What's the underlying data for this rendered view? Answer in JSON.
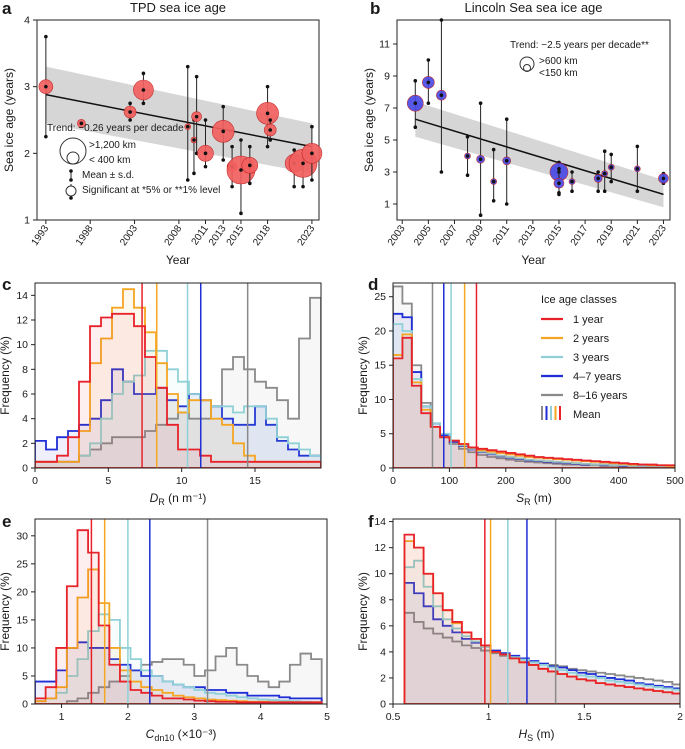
{
  "colors": {
    "c1": "#e8222a",
    "c2": "#f5a623",
    "c3": "#8fd1d6",
    "c4": "#1f2ed6",
    "c5": "#8a8a8a",
    "tpd_fill": "#f26060",
    "lincoln_fill": "#4a4ae6",
    "band": "#c8c8c8"
  },
  "chart_data": [
    {
      "id": "a",
      "letter": "a",
      "type": "scatter",
      "title": "TPD sea ice age",
      "xlabel": "Year",
      "ylabel": "Sea ice age (years)",
      "xlim": [
        1992,
        2023.8
      ],
      "ylim": [
        1,
        4
      ],
      "xticks": [
        1993,
        1998,
        2003,
        2008,
        2011,
        2013,
        2015,
        2018,
        2023
      ],
      "yticks": [
        1,
        2,
        3,
        4
      ],
      "trend": {
        "label": "Trend: −0.26 years per decade",
        "x": [
          1993,
          2023
        ],
        "y": [
          2.88,
          2.1
        ],
        "band_upper": [
          3.3,
          2.45
        ],
        "band_lower": [
          2.45,
          1.7
        ]
      },
      "legend_size_large": ">1,200 km",
      "legend_size_small": "< 400 km",
      "legend_mean": "Mean ± s.d.",
      "legend_sig": "Significant at *5% or **1% level",
      "points": [
        {
          "x": 1993,
          "y": 3.0,
          "lo": 2.25,
          "hi": 3.75,
          "s": 7
        },
        {
          "x": 1997,
          "y": 2.45,
          "lo": 2.45,
          "hi": 2.45,
          "s": 4
        },
        {
          "x": 2002.5,
          "y": 2.62,
          "lo": 2.5,
          "hi": 2.75,
          "s": 6
        },
        {
          "x": 2004,
          "y": 2.95,
          "lo": 2.75,
          "hi": 3.2,
          "s": 10
        },
        {
          "x": 2009,
          "y": 2.4,
          "lo": 1.6,
          "hi": 3.3,
          "s": 3
        },
        {
          "x": 2009.7,
          "y": 2.2,
          "lo": 1.7,
          "hi": 2.5,
          "s": 3
        },
        {
          "x": 2010,
          "y": 2.55,
          "lo": 2.0,
          "hi": 3.15,
          "s": 5
        },
        {
          "x": 2011,
          "y": 2.0,
          "lo": 1.8,
          "hi": 2.5,
          "s": 8
        },
        {
          "x": 2013,
          "y": 2.33,
          "lo": 1.9,
          "hi": 2.7,
          "s": 11
        },
        {
          "x": 2014,
          "y": 1.8,
          "lo": 1.5,
          "hi": 2.1,
          "s": 5
        },
        {
          "x": 2015,
          "y": 1.75,
          "lo": 1.1,
          "hi": 2.2,
          "s": 14
        },
        {
          "x": 2016,
          "y": 1.82,
          "lo": 1.55,
          "hi": 2.1,
          "s": 8
        },
        {
          "x": 2018,
          "y": 2.6,
          "lo": 2.1,
          "hi": 3.0,
          "s": 11
        },
        {
          "x": 2018.3,
          "y": 2.35,
          "lo": 2.2,
          "hi": 2.5,
          "s": 6
        },
        {
          "x": 2021,
          "y": 1.85,
          "lo": 1.5,
          "hi": 2.05,
          "s": 9
        },
        {
          "x": 2022,
          "y": 1.85,
          "lo": 1.5,
          "hi": 2.0,
          "s": 14
        },
        {
          "x": 2023,
          "y": 2.0,
          "lo": 1.6,
          "hi": 2.4,
          "s": 10
        }
      ]
    },
    {
      "id": "b",
      "letter": "b",
      "type": "scatter",
      "title": "Lincoln Sea sea ice age",
      "xlabel": "Year",
      "ylabel": "Sea ice age (years)",
      "xlim": [
        2002.6,
        2023.5
      ],
      "ylim": [
        0,
        12.5
      ],
      "xticks": [
        2003,
        2005,
        2007,
        2009,
        2011,
        2013,
        2015,
        2017,
        2019,
        2021,
        2023
      ],
      "yticks": [
        1,
        3,
        5,
        7,
        9,
        11
      ],
      "trend": {
        "label": "Trend: −2.5 years per decade**",
        "x": [
          2004,
          2023
        ],
        "y": [
          6.3,
          1.6
        ],
        "band_upper": [
          7.4,
          2.5
        ],
        "band_lower": [
          5.2,
          0.8
        ]
      },
      "legend_size_large": ">600 km",
      "legend_size_small": "<150 km",
      "points": [
        {
          "x": 2004,
          "y": 7.3,
          "lo": 5.8,
          "hi": 8.7,
          "s": 8
        },
        {
          "x": 2005,
          "y": 8.6,
          "lo": 7.3,
          "hi": 10.0,
          "s": 6
        },
        {
          "x": 2006,
          "y": 7.8,
          "lo": 3.0,
          "hi": 12.5,
          "s": 5
        },
        {
          "x": 2008,
          "y": 4.0,
          "lo": 2.8,
          "hi": 5.2,
          "s": 3
        },
        {
          "x": 2009,
          "y": 3.8,
          "lo": 0.3,
          "hi": 7.3,
          "s": 4
        },
        {
          "x": 2010,
          "y": 2.4,
          "lo": 1.2,
          "hi": 4.4,
          "s": 3
        },
        {
          "x": 2011,
          "y": 3.7,
          "lo": 1.0,
          "hi": 6.3,
          "s": 4
        },
        {
          "x": 2015,
          "y": 3.0,
          "lo": 1.6,
          "hi": 3.6,
          "s": 9
        },
        {
          "x": 2015,
          "y": 2.3,
          "lo": 1.7,
          "hi": 3.2,
          "s": 5
        },
        {
          "x": 2016,
          "y": 2.4,
          "lo": 1.8,
          "hi": 3.0,
          "s": 3
        },
        {
          "x": 2018,
          "y": 2.6,
          "lo": 1.8,
          "hi": 3.0,
          "s": 4
        },
        {
          "x": 2018.5,
          "y": 2.9,
          "lo": 1.8,
          "hi": 4.3,
          "s": 3
        },
        {
          "x": 2019,
          "y": 3.3,
          "lo": 2.4,
          "hi": 4.1,
          "s": 3
        },
        {
          "x": 2021,
          "y": 3.2,
          "lo": 1.8,
          "hi": 4.6,
          "s": 3
        },
        {
          "x": 2023,
          "y": 2.6,
          "lo": 2.3,
          "hi": 2.9,
          "s": 5
        }
      ]
    },
    {
      "id": "c",
      "letter": "c",
      "type": "histogram",
      "xlabel": "D_R (n m^-1)",
      "xlim": [
        0,
        19.5
      ],
      "ylim": [
        0,
        15
      ],
      "xticks": [
        0,
        5,
        10,
        15
      ],
      "yticks": [
        0,
        2,
        4,
        6,
        8,
        10,
        12,
        14
      ],
      "ylabel": "Frequency (%)",
      "edges_start": 0,
      "bin": 0.75,
      "series": [
        {
          "name": "1 year",
          "means": 7.3,
          "values": [
            0.5,
            0.5,
            1,
            2.5,
            7,
            11.5,
            12.2,
            12.5,
            12.5,
            11.5,
            9,
            6.5,
            3.5,
            1.5,
            1.5,
            1,
            0.5,
            0.5,
            0.5,
            0.5,
            0.5,
            0.5,
            0.5,
            0.5,
            0.5,
            0.5
          ]
        },
        {
          "name": "2 years",
          "means": 8.3,
          "values": [
            0.5,
            0.5,
            0.5,
            0.5,
            3,
            8.5,
            10.5,
            13,
            14.5,
            13,
            11,
            8.5,
            6,
            4.5,
            5.5,
            5.5,
            4,
            3.5,
            2,
            1,
            0.5,
            0.5,
            0.5,
            0.5,
            0.5,
            0.5
          ]
        },
        {
          "name": "3 years",
          "means": 10.4,
          "values": [
            0.5,
            0.5,
            0.5,
            0.5,
            1,
            2,
            4,
            6,
            7,
            7.5,
            9.5,
            9.5,
            8,
            7,
            6,
            5.5,
            5,
            5,
            4.5,
            5,
            5,
            4,
            2.5,
            2,
            1.5,
            1
          ]
        },
        {
          "name": "4–7 years",
          "means": 11.3,
          "values": [
            2.2,
            1.5,
            2.5,
            3,
            3.5,
            4,
            5.5,
            8,
            7,
            6,
            6,
            6.5,
            5.5,
            5,
            6,
            5.5,
            5,
            4,
            3.5,
            3.5,
            5,
            3.5,
            2.2,
            1.5,
            1,
            1
          ]
        },
        {
          "name": "8–16 years",
          "means": 14.5,
          "values": [
            0.5,
            0.5,
            0.5,
            0.5,
            1,
            1.5,
            2,
            2.5,
            2.5,
            2.5,
            3,
            3.5,
            4,
            4.5,
            4,
            4,
            5,
            8,
            9,
            8,
            7,
            6.5,
            5.5,
            4,
            10.5,
            13.8
          ]
        }
      ]
    },
    {
      "id": "d",
      "letter": "d",
      "type": "histogram",
      "xlabel": "S_R (m)",
      "xlim": [
        0,
        500
      ],
      "ylim": [
        0,
        27
      ],
      "xticks": [
        0,
        100,
        200,
        300,
        400,
        500
      ],
      "yticks": [
        0,
        5,
        10,
        15,
        20,
        25
      ],
      "ylabel": "Frequency (%)",
      "edges_start": 0,
      "bin": 16.7,
      "series": [
        {
          "name": "1 year",
          "means": 148,
          "values": [
            16,
            19,
            12,
            8,
            6,
            4.5,
            4,
            3.5,
            3,
            2.8,
            2.6,
            2.4,
            2.2,
            2,
            1.8,
            1.6,
            1.5,
            1.4,
            1.3,
            1.2,
            1.1,
            1,
            0.9,
            0.8,
            0.7,
            0.6,
            0.5,
            0.5,
            0.4,
            0.4
          ]
        },
        {
          "name": "2 years",
          "means": 127,
          "values": [
            16.5,
            19.5,
            12.5,
            8.5,
            6,
            4.5,
            4,
            3.5,
            3,
            2.6,
            2.4,
            2.2,
            2,
            1.8,
            1.6,
            1.5,
            1.4,
            1.3,
            1.2,
            1.1,
            1,
            0.9,
            0.8,
            0.7,
            0.6,
            0.5,
            0.5,
            0.4,
            0.4,
            0.3
          ]
        },
        {
          "name": "3 years",
          "means": 103,
          "values": [
            21,
            20,
            13,
            9,
            6.5,
            5,
            4,
            3.3,
            2.8,
            2.4,
            2.1,
            1.8,
            1.6,
            1.4,
            1.2,
            1.1,
            1,
            0.9,
            0.8,
            0.7,
            0.6,
            0.5,
            0.5,
            0.4,
            0.4,
            0.3,
            0.3,
            0.3,
            0.2,
            0.2
          ]
        },
        {
          "name": "4–7 years",
          "means": 90,
          "values": [
            22.5,
            22,
            14,
            9,
            6.5,
            4.8,
            3.8,
            3.2,
            2.7,
            2.3,
            2,
            1.7,
            1.5,
            1.3,
            1.1,
            1,
            0.9,
            0.8,
            0.7,
            0.6,
            0.5,
            0.5,
            0.4,
            0.4,
            0.3,
            0.3,
            0.3,
            0.2,
            0.2,
            0.2
          ]
        },
        {
          "name": "8–16 years",
          "means": 70,
          "values": [
            26.5,
            24,
            15,
            9.5,
            6.5,
            4.5,
            3.5,
            2.8,
            2.3,
            1.9,
            1.6,
            1.4,
            1.2,
            1,
            0.9,
            0.8,
            0.7,
            0.6,
            0.5,
            0.5,
            0.4,
            0.4,
            0.3,
            0.3,
            0.3,
            0.2,
            0.2,
            0.2,
            0.2,
            0.2
          ]
        }
      ],
      "legend_title": "Ice age classes",
      "legend_mean": "Mean"
    },
    {
      "id": "e",
      "letter": "e",
      "type": "histogram",
      "xlabel": "C_dn10 (×10^-3)",
      "xlim": [
        0.6,
        5
      ],
      "ylim": [
        0,
        33
      ],
      "xticks": [
        1,
        2,
        3,
        4,
        5
      ],
      "yticks": [
        0,
        5,
        10,
        15,
        20,
        25,
        30
      ],
      "ylabel": "Frequency (%)",
      "edges_start": 0.6,
      "bin": 0.16,
      "series": [
        {
          "name": "1 year",
          "means": 1.45,
          "values": [
            1,
            3,
            10,
            21,
            31,
            27,
            14,
            7,
            4,
            2.5,
            2,
            1.5,
            1,
            1,
            0.8,
            0.6,
            0.5,
            0.4,
            0.4,
            0.3,
            0.3,
            0.3,
            0.3,
            0.3,
            0.3,
            0.3,
            0.3
          ]
        },
        {
          "name": "2 years",
          "means": 1.65,
          "values": [
            0.5,
            1,
            3,
            10,
            19,
            24,
            18,
            10,
            6,
            4,
            3,
            2.5,
            2,
            1.5,
            1.2,
            1,
            0.8,
            0.7,
            0.6,
            0.5,
            0.4,
            0.4,
            0.3,
            0.3,
            0.3,
            0.3,
            0.3
          ]
        },
        {
          "name": "3 years",
          "means": 2.0,
          "values": [
            0.5,
            1,
            2,
            5,
            8,
            13,
            16,
            15,
            10,
            8,
            6,
            5,
            4,
            3.5,
            3,
            2.5,
            2,
            1.8,
            1.5,
            1.2,
            1,
            0.8,
            0.7,
            0.6,
            0.5,
            0.4,
            0.3
          ]
        },
        {
          "name": "4–7 years",
          "means": 2.33,
          "values": [
            4,
            4,
            6,
            10,
            11,
            10,
            10,
            8,
            7,
            6,
            5,
            5,
            4,
            3.5,
            3,
            3,
            2.5,
            2.5,
            2,
            2,
            1.5,
            1.5,
            1.5,
            1.2,
            1,
            1,
            1
          ]
        },
        {
          "name": "8–16 years",
          "means": 3.2,
          "values": [
            0,
            0,
            0,
            0.5,
            1,
            2,
            3,
            4,
            5,
            6,
            7,
            7.5,
            8,
            8,
            7,
            5,
            6,
            8.5,
            10,
            7,
            5,
            4,
            3,
            4,
            7,
            9,
            8
          ]
        }
      ]
    },
    {
      "id": "f",
      "letter": "f",
      "type": "histogram",
      "xlabel": "H_S (m)",
      "xlim": [
        0.5,
        2.0
      ],
      "ylim": [
        0,
        14.2
      ],
      "xticks": [
        0.5,
        1.0,
        1.5,
        2.0
      ],
      "yticks": [
        0,
        2,
        4,
        6,
        8,
        10,
        12,
        14
      ],
      "ylabel": "Frequency (%)",
      "edges_start": 0.56,
      "bin": 0.05,
      "series": [
        {
          "name": "1 year",
          "means": 0.98,
          "values": [
            13,
            12,
            10,
            8.5,
            7.2,
            6.3,
            5.5,
            5,
            4.5,
            4,
            3.8,
            3.5,
            3.2,
            3,
            2.7,
            2.5,
            2.3,
            2.1,
            1.9,
            1.8,
            1.6,
            1.5,
            1.4,
            1.3,
            1.2,
            1.1,
            1,
            0.9,
            0.8
          ]
        },
        {
          "name": "2 years",
          "means": 1.01,
          "values": [
            12.5,
            12,
            10,
            8.5,
            7.2,
            6.2,
            5.5,
            5,
            4.5,
            4,
            3.8,
            3.5,
            3.2,
            3,
            2.7,
            2.5,
            2.3,
            2.1,
            1.9,
            1.8,
            1.6,
            1.5,
            1.4,
            1.3,
            1.2,
            1.1,
            1,
            0.9,
            0.8
          ]
        },
        {
          "name": "3 years",
          "means": 1.1,
          "values": [
            10.5,
            11,
            9,
            7.5,
            6.5,
            5.8,
            5.2,
            4.8,
            4.4,
            4,
            3.8,
            3.6,
            3.4,
            3.2,
            3,
            2.8,
            2.6,
            2.4,
            2.2,
            2.1,
            2,
            1.8,
            1.7,
            1.6,
            1.5,
            1.4,
            1.3,
            1.2,
            1.1
          ]
        },
        {
          "name": "4–7 years",
          "means": 1.2,
          "values": [
            9.3,
            8.5,
            7.5,
            6.5,
            6,
            5.5,
            5,
            4.7,
            4.4,
            4.1,
            3.9,
            3.7,
            3.5,
            3.3,
            3.1,
            2.9,
            2.8,
            2.6,
            2.4,
            2.3,
            2.1,
            2,
            1.9,
            1.8,
            1.6,
            1.5,
            1.4,
            1.3,
            1.2
          ]
        },
        {
          "name": "8–16 years",
          "means": 1.35,
          "values": [
            7,
            6.3,
            5.8,
            5.4,
            5.1,
            4.8,
            4.5,
            4.3,
            4.1,
            3.9,
            3.7,
            3.5,
            3.4,
            3.2,
            3.1,
            3,
            2.9,
            2.7,
            2.6,
            2.5,
            2.4,
            2.3,
            2.2,
            2.1,
            2,
            1.9,
            1.8,
            1.7,
            1.5
          ]
        }
      ]
    }
  ]
}
